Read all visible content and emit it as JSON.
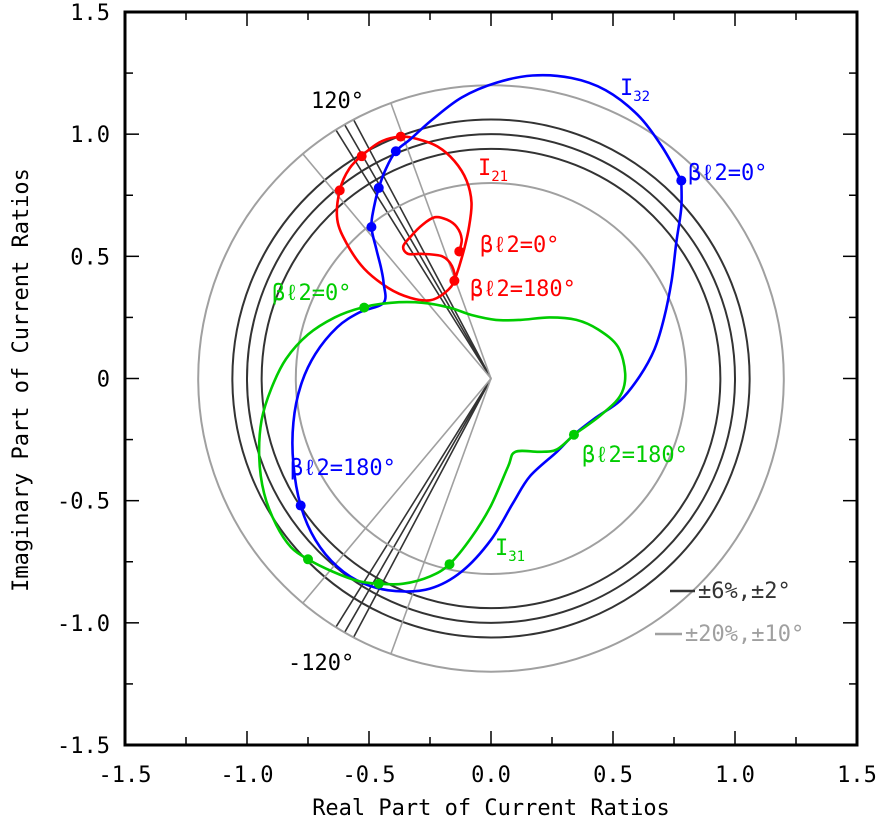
{
  "chart_data": {
    "type": "line",
    "title": "",
    "xlabel": "Real Part of Current Ratios",
    "ylabel": "Imaginary Part of Current Ratios",
    "xlim": [
      -1.5,
      1.5
    ],
    "ylim": [
      -1.5,
      1.5
    ],
    "x_ticks": [
      "-1.5",
      "-1.0",
      "-0.5",
      "0.0",
      "0.5",
      "1.0",
      "1.5"
    ],
    "y_ticks": [
      "-1.5",
      "-1.0",
      "-0.5",
      "0",
      "0.5",
      "1.0",
      "1.5"
    ],
    "grid": false,
    "colors": {
      "I21": "#ff0000",
      "I32": "#0000ff",
      "I31": "#00cc00",
      "tol_tight": "#000000",
      "tol_loose": "#999999"
    },
    "tolerance_regions": [
      {
        "label": "±6%,±2°",
        "color": "#333333",
        "radii": [
          0.94,
          1.0,
          1.06
        ],
        "angles_deg": [
          118,
          120,
          122,
          -118,
          -120,
          -122
        ]
      },
      {
        "label": "±20%,±10°",
        "color": "#a0a0a0",
        "radii": [
          0.8,
          1.2
        ],
        "angles_deg": [
          110,
          130,
          -110,
          -130
        ]
      }
    ],
    "series": [
      {
        "name": "I21",
        "points": [
          [
            -0.13,
            0.52
          ],
          [
            -0.12,
            0.57
          ],
          [
            -0.14,
            0.62
          ],
          [
            -0.18,
            0.65
          ],
          [
            -0.23,
            0.66
          ],
          [
            -0.28,
            0.63
          ],
          [
            -0.33,
            0.58
          ],
          [
            -0.36,
            0.54
          ],
          [
            -0.34,
            0.51
          ],
          [
            -0.28,
            0.51
          ],
          [
            -0.2,
            0.5
          ],
          [
            -0.16,
            0.46
          ],
          [
            -0.15,
            0.4
          ],
          [
            -0.19,
            0.35
          ],
          [
            -0.25,
            0.32
          ],
          [
            -0.33,
            0.33
          ],
          [
            -0.42,
            0.37
          ],
          [
            -0.52,
            0.45
          ],
          [
            -0.59,
            0.55
          ],
          [
            -0.63,
            0.65
          ],
          [
            -0.62,
            0.77
          ],
          [
            -0.58,
            0.86
          ],
          [
            -0.52,
            0.92
          ],
          [
            -0.45,
            0.97
          ],
          [
            -0.37,
            0.99
          ],
          [
            -0.3,
            0.98
          ],
          [
            -0.22,
            0.95
          ],
          [
            -0.15,
            0.89
          ],
          [
            -0.1,
            0.81
          ],
          [
            -0.08,
            0.72
          ],
          [
            -0.09,
            0.62
          ],
          [
            -0.11,
            0.53
          ],
          [
            -0.13,
            0.46
          ],
          [
            -0.15,
            0.4
          ]
        ],
        "markers": [
          [
            -0.13,
            0.52
          ],
          [
            -0.15,
            0.4
          ],
          [
            -0.62,
            0.77
          ],
          [
            -0.53,
            0.91
          ],
          [
            -0.37,
            0.99
          ]
        ],
        "labels": [
          "I21",
          "βℓ2=0°",
          "βℓ2=180°"
        ]
      },
      {
        "name": "I32",
        "points": [
          [
            0.78,
            0.81
          ],
          [
            0.7,
            0.95
          ],
          [
            0.6,
            1.08
          ],
          [
            0.47,
            1.18
          ],
          [
            0.33,
            1.23
          ],
          [
            0.17,
            1.24
          ],
          [
            0.02,
            1.21
          ],
          [
            -0.12,
            1.15
          ],
          [
            -0.24,
            1.06
          ],
          [
            -0.33,
            0.98
          ],
          [
            -0.39,
            0.93
          ],
          [
            -0.43,
            0.86
          ],
          [
            -0.46,
            0.78
          ],
          [
            -0.48,
            0.7
          ],
          [
            -0.49,
            0.62
          ],
          [
            -0.47,
            0.53
          ],
          [
            -0.45,
            0.45
          ],
          [
            -0.44,
            0.39
          ],
          [
            -0.44,
            0.31
          ],
          [
            -0.54,
            0.27
          ],
          [
            -0.63,
            0.21
          ],
          [
            -0.72,
            0.1
          ],
          [
            -0.78,
            -0.03
          ],
          [
            -0.81,
            -0.18
          ],
          [
            -0.81,
            -0.35
          ],
          [
            -0.78,
            -0.52
          ],
          [
            -0.72,
            -0.66
          ],
          [
            -0.63,
            -0.77
          ],
          [
            -0.52,
            -0.84
          ],
          [
            -0.39,
            -0.87
          ],
          [
            -0.25,
            -0.86
          ],
          [
            -0.12,
            -0.79
          ],
          [
            0.0,
            -0.66
          ],
          [
            0.09,
            -0.51
          ],
          [
            0.16,
            -0.4
          ],
          [
            0.27,
            -0.3
          ],
          [
            0.34,
            -0.23
          ],
          [
            0.43,
            -0.16
          ],
          [
            0.53,
            -0.09
          ],
          [
            0.61,
            0.01
          ],
          [
            0.67,
            0.12
          ],
          [
            0.71,
            0.25
          ],
          [
            0.74,
            0.4
          ],
          [
            0.76,
            0.56
          ],
          [
            0.78,
            0.7
          ],
          [
            0.78,
            0.81
          ]
        ],
        "markers": [
          [
            0.78,
            0.81
          ],
          [
            -0.39,
            0.93
          ],
          [
            -0.46,
            0.78
          ],
          [
            -0.49,
            0.62
          ],
          [
            -0.78,
            -0.52
          ]
        ],
        "labels": [
          "I32",
          "βℓ2=0°",
          "βℓ2=180°"
        ]
      },
      {
        "name": "I31",
        "points": [
          [
            0.34,
            -0.23
          ],
          [
            0.45,
            -0.15
          ],
          [
            0.53,
            -0.07
          ],
          [
            0.55,
            0.02
          ],
          [
            0.52,
            0.13
          ],
          [
            0.44,
            0.2
          ],
          [
            0.35,
            0.24
          ],
          [
            0.24,
            0.25
          ],
          [
            0.12,
            0.24
          ],
          [
            0.02,
            0.24
          ],
          [
            -0.08,
            0.26
          ],
          [
            -0.17,
            0.29
          ],
          [
            -0.28,
            0.31
          ],
          [
            -0.41,
            0.31
          ],
          [
            -0.53,
            0.29
          ],
          [
            -0.64,
            0.25
          ],
          [
            -0.75,
            0.18
          ],
          [
            -0.84,
            0.08
          ],
          [
            -0.9,
            -0.04
          ],
          [
            -0.94,
            -0.17
          ],
          [
            -0.95,
            -0.32
          ],
          [
            -0.93,
            -0.47
          ],
          [
            -0.88,
            -0.6
          ],
          [
            -0.82,
            -0.69
          ],
          [
            -0.75,
            -0.74
          ],
          [
            -0.65,
            -0.79
          ],
          [
            -0.54,
            -0.83
          ],
          [
            -0.46,
            -0.84
          ],
          [
            -0.36,
            -0.84
          ],
          [
            -0.25,
            -0.81
          ],
          [
            -0.17,
            -0.76
          ],
          [
            -0.08,
            -0.65
          ],
          [
            0.0,
            -0.52
          ],
          [
            0.07,
            -0.36
          ],
          [
            0.1,
            -0.3
          ],
          [
            0.2,
            -0.3
          ],
          [
            0.27,
            -0.29
          ],
          [
            0.34,
            -0.23
          ]
        ],
        "markers": [
          [
            0.34,
            -0.23
          ],
          [
            -0.52,
            0.29
          ],
          [
            -0.75,
            -0.74
          ],
          [
            -0.46,
            -0.84
          ],
          [
            -0.17,
            -0.76
          ]
        ],
        "labels": [
          "I31",
          "βℓ2=0°",
          "βℓ2=180°"
        ]
      }
    ],
    "annotations": {
      "angle_120": "120°",
      "angle_neg120": "-120°",
      "label_I21": "I21",
      "label_I32": "I32",
      "label_I31": "I31",
      "red_0": "βℓ2=0°",
      "red_180": "βℓ2=180°",
      "blue_0": "βℓ2=0°",
      "blue_180": "βℓ2=180°",
      "green_0": "βℓ2=0°",
      "green_180": "βℓ2=180°",
      "legend_tight": "±6%,±2°",
      "legend_loose": "±20%,±10°"
    }
  }
}
